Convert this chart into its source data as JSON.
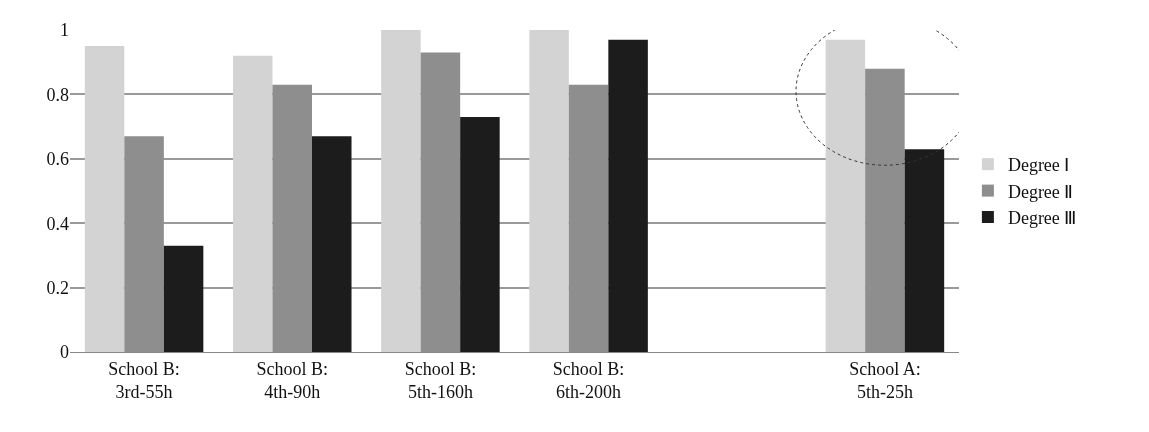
{
  "chart_data": {
    "type": "bar",
    "categories": [
      "School B:\n3rd-55h",
      "School B:\n4th-90h",
      "School B:\n5th-160h",
      "School B:\n6th-200h",
      null,
      "School A:\n5th-25h"
    ],
    "series": [
      {
        "name": "Degree Ⅰ",
        "color": "#d3d3d3",
        "values": [
          0.95,
          0.92,
          1.0,
          1.0,
          null,
          0.97
        ]
      },
      {
        "name": "Degree Ⅱ",
        "color": "#8e8e8e",
        "values": [
          0.67,
          0.83,
          0.93,
          0.83,
          null,
          0.88
        ]
      },
      {
        "name": "Degree Ⅲ",
        "color": "#1c1c1c",
        "values": [
          0.33,
          0.67,
          0.73,
          0.97,
          null,
          0.63
        ]
      }
    ],
    "ylim": [
      0,
      1
    ],
    "yticks": [
      0,
      0.2,
      0.4,
      0.6,
      0.8,
      1
    ],
    "grid": "y",
    "legend": "right"
  }
}
